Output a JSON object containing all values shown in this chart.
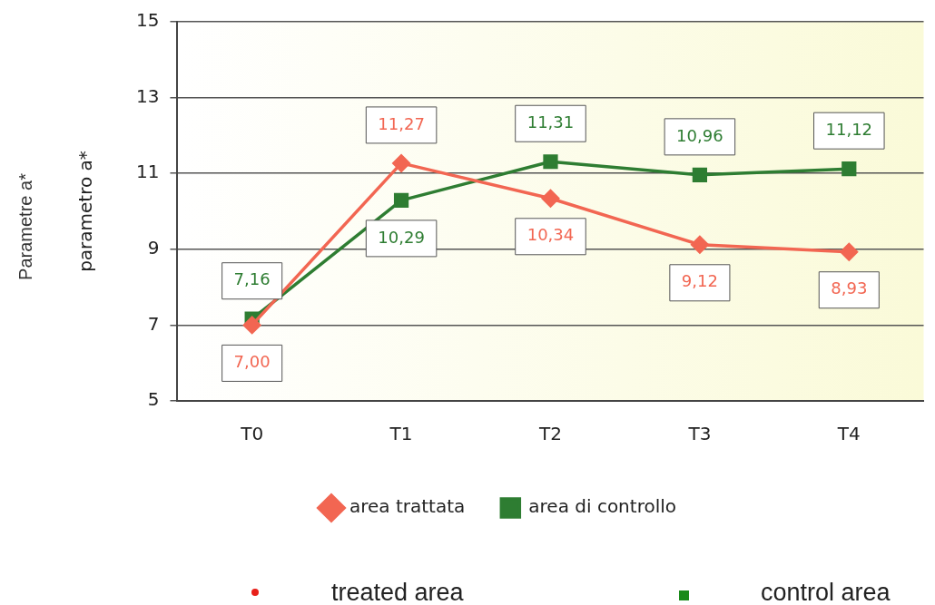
{
  "chart_data": {
    "type": "line",
    "ylabel": "parametro a*",
    "categories": [
      "T0",
      "T1",
      "T2",
      "T3",
      "T4"
    ],
    "series": [
      {
        "name": "area trattata",
        "color": "#f26652",
        "marker": "diamond",
        "values": [
          7.0,
          11.27,
          10.34,
          9.12,
          8.93
        ],
        "value_labels": [
          "7,00",
          "11,27",
          "10,34",
          "9,12",
          "8,93"
        ]
      },
      {
        "name": "area di controllo",
        "color": "#2e7d32",
        "marker": "square",
        "values": [
          7.16,
          10.29,
          11.31,
          10.96,
          11.12
        ],
        "value_labels": [
          "7,16",
          "10,29",
          "11,31",
          "10,96",
          "11,12"
        ]
      }
    ],
    "ylim": [
      5,
      15
    ],
    "yticks": [
      5,
      7,
      9,
      11,
      13,
      15
    ],
    "grid": "y",
    "legend": "bottom",
    "line_style": "solid",
    "annotations": [
      "Parametre a*",
      "treated area",
      "control area"
    ]
  }
}
